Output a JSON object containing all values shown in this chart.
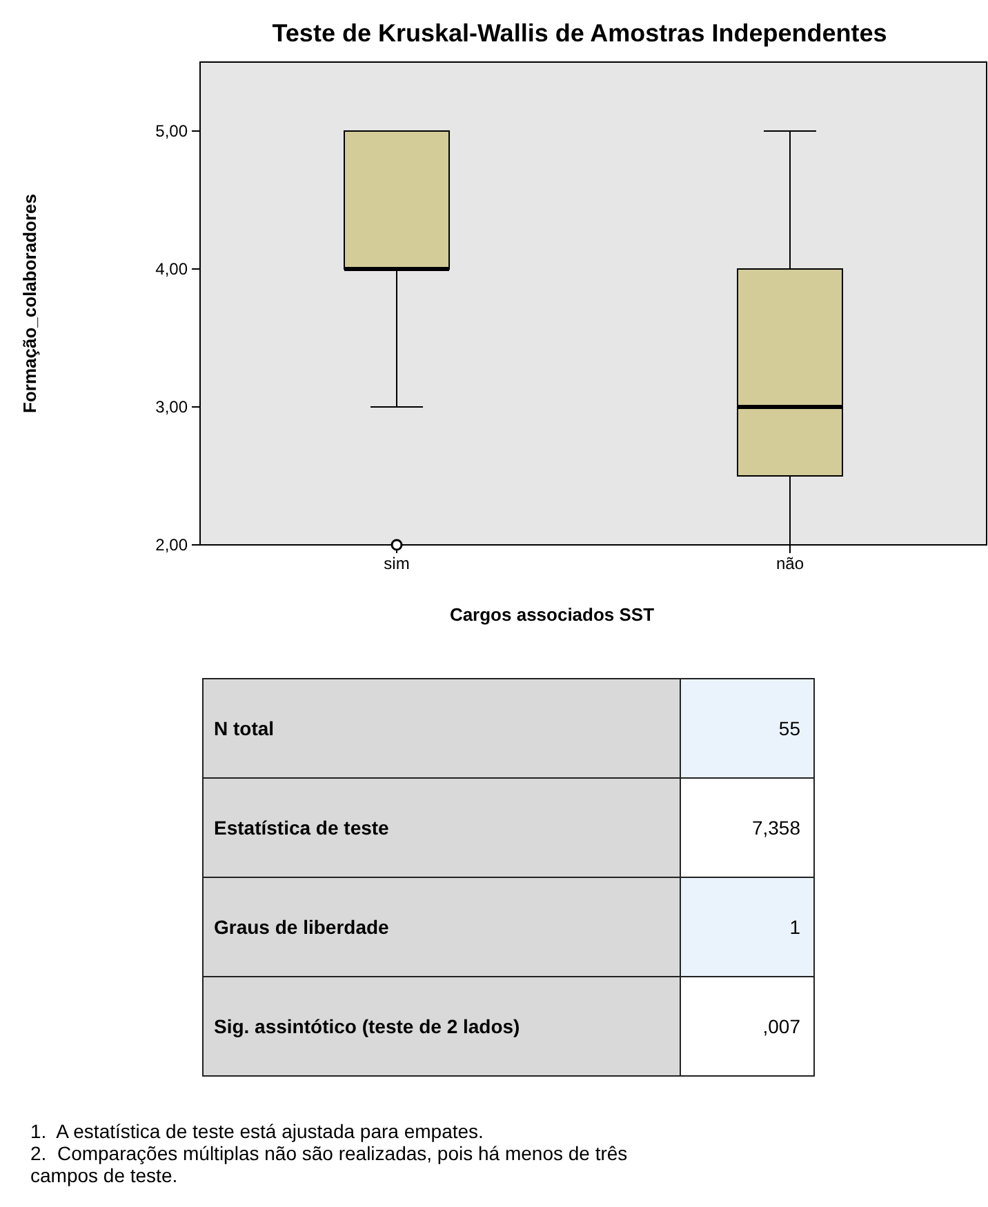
{
  "chart_data": [
    {
      "type": "box",
      "title": "Teste de Kruskal-Wallis de Amostras Independentes",
      "xlabel": "Cargos associados SST",
      "ylabel": "Formação_colaboradores",
      "categories": [
        "sim",
        "não"
      ],
      "color": "#d3cc98",
      "boxes": [
        {
          "low": 3,
          "q1": 4,
          "median": 4,
          "q3": 5,
          "high": 5,
          "outliers": [
            2
          ]
        },
        {
          "low": 2,
          "q1": 2.5,
          "median": 3,
          "q3": 4,
          "high": 5
        }
      ],
      "ylim": [
        2,
        5.5
      ],
      "yticks": [
        {
          "value": 2,
          "label": "2,00"
        },
        {
          "value": 3,
          "label": "3,00"
        },
        {
          "value": 4,
          "label": "4,00"
        },
        {
          "value": 5,
          "label": "5,00"
        }
      ],
      "grid": false
    },
    {
      "type": "other",
      "categories": [
        "N total",
        "Estatística de teste",
        "Graus de liberdade",
        "Sig. assintótico (teste de 2 lados)"
      ],
      "annotations": [
        "55",
        "7,358",
        "1",
        ",007",
        "1.  A estatística de teste está ajustada para empates.",
        "2.  Comparações múltiplas não são realizadas, pois há menos de três campos de teste."
      ]
    }
  ]
}
